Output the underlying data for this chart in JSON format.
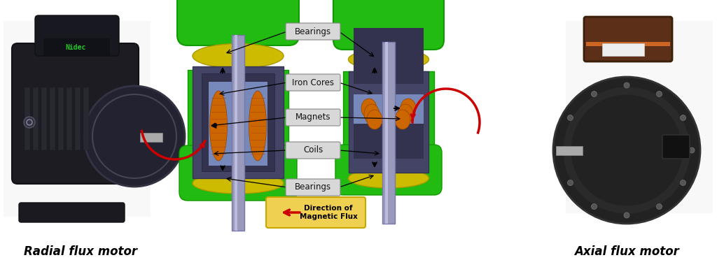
{
  "background_color": "#ffffff",
  "left_label": "Radial flux motor",
  "right_label": "Axial flux motor",
  "labels": [
    "Bearings",
    "Iron Cores",
    "Magnets",
    "Coils",
    "Bearings"
  ],
  "red_arrow_color": "#cc0000",
  "flux_label": "Direction of\nMagnetic Flux",
  "flux_bg": "#f0d050",
  "flux_arrow_color": "#cc0000",
  "figsize": [
    10.24,
    3.82
  ],
  "dpi": 100,
  "green": "#22bb11",
  "green_dark": "#119900",
  "yellow": "#ccbb00",
  "gray_shaft": "#9999bb",
  "dark_body": "#444466",
  "darker_body": "#333350",
  "orange_coil": "#cc6600",
  "blue_stator": "#6677aa",
  "label_bg": "#d8d8d8",
  "label_edge": "#888888"
}
